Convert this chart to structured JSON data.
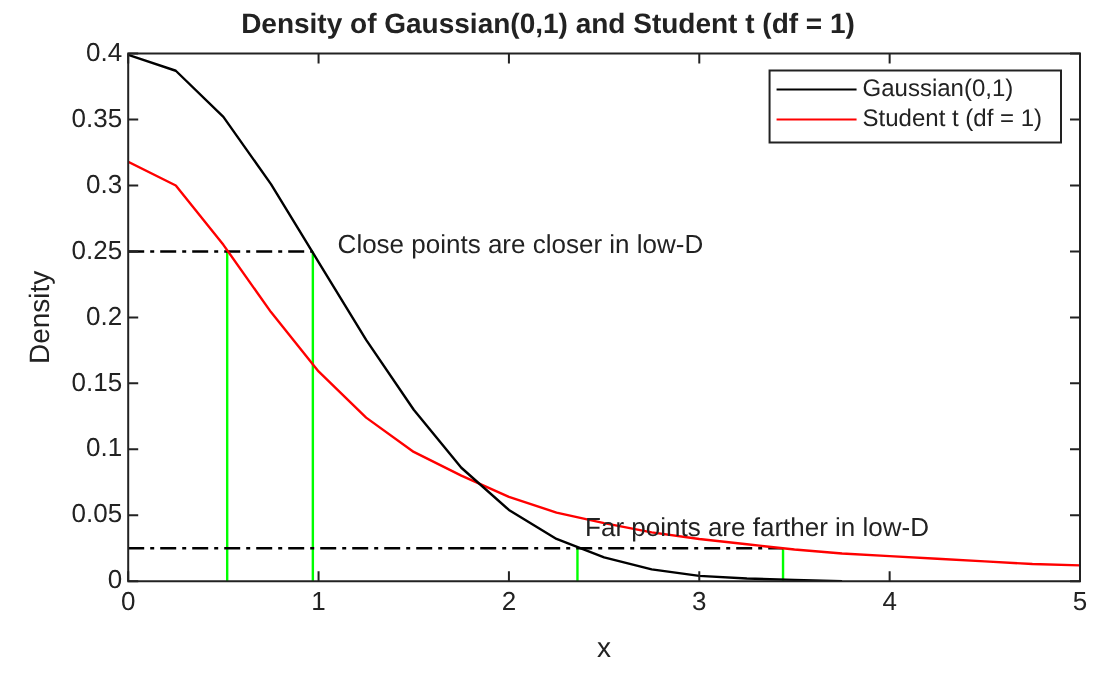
{
  "chart_data": {
    "type": "line",
    "title": "Density of Gaussian(0,1) and Student t (df = 1)",
    "xlabel": "x",
    "ylabel": "Density",
    "xlim": [
      0,
      5
    ],
    "xticks": [
      0,
      1,
      2,
      3,
      4,
      5
    ],
    "ylim": [
      0,
      0.4
    ],
    "yticks": [
      0,
      0.05,
      0.1,
      0.15,
      0.2,
      0.25,
      0.3,
      0.35,
      0.4
    ],
    "grid": false,
    "legend": "top right",
    "marker": "none",
    "series": [
      {
        "name": "Gaussian(0,1)",
        "color": "#000000",
        "x": [
          0,
          0.25,
          0.5,
          0.75,
          1,
          1.25,
          1.5,
          1.75,
          2,
          2.25,
          2.5,
          2.75,
          3,
          3.25,
          3.5,
          3.75
        ],
        "values": [
          0.399,
          0.387,
          0.352,
          0.301,
          0.242,
          0.183,
          0.13,
          0.086,
          0.054,
          0.032,
          0.018,
          0.009,
          0.004,
          0.002,
          0.001,
          0.0
        ]
      },
      {
        "name": "Student t (df = 1)",
        "color": "#ff0000",
        "x": [
          0,
          0.25,
          0.5,
          0.75,
          1,
          1.25,
          1.5,
          1.75,
          2,
          2.25,
          2.5,
          2.75,
          3,
          3.25,
          3.5,
          3.75,
          4,
          4.25,
          4.5,
          4.75,
          5
        ],
        "values": [
          0.318,
          0.3,
          0.255,
          0.204,
          0.159,
          0.124,
          0.098,
          0.08,
          0.064,
          0.052,
          0.044,
          0.037,
          0.032,
          0.028,
          0.024,
          0.021,
          0.019,
          0.017,
          0.015,
          0.013,
          0.012
        ]
      },
      {
        "color": "#000000",
        "line_style": "dashed",
        "x": [
          0,
          0.97
        ],
        "values": [
          0.25,
          0.25
        ]
      },
      {
        "color": "#000000",
        "line_style": "dashed",
        "x": [
          0,
          3.44
        ],
        "values": [
          0.025,
          0.025
        ]
      },
      {
        "color": "#00ff00",
        "x": [
          0.52,
          0.52
        ],
        "values": [
          0,
          0.25
        ]
      },
      {
        "color": "#00ff00",
        "x": [
          0.97,
          0.97
        ],
        "values": [
          0,
          0.25
        ]
      },
      {
        "color": "#00ff00",
        "x": [
          2.36,
          2.36
        ],
        "values": [
          0,
          0.025
        ]
      },
      {
        "color": "#00ff00",
        "x": [
          3.44,
          3.44
        ],
        "values": [
          0,
          0.025
        ]
      }
    ],
    "annotations": [
      "Close points are closer in low-D",
      {
        "text": "Far points are farther in low-D",
        "x": 2.4,
        "y": 0.04
      }
    ]
  }
}
